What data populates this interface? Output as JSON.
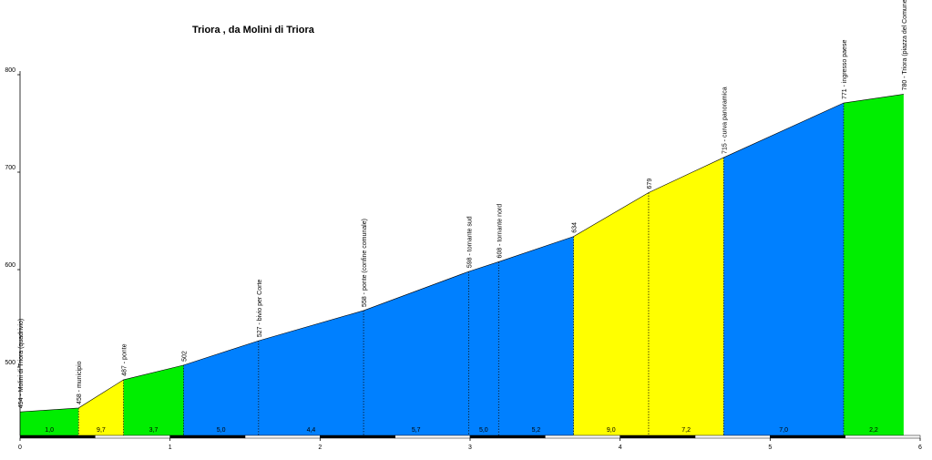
{
  "chart_data": {
    "type": "area",
    "title": "Triora , da Molini di Triora",
    "xlabel": "",
    "ylabel": "",
    "xlim": [
      0,
      6
    ],
    "ylim": [
      430,
      800
    ],
    "x_ticks": [
      0,
      1,
      2,
      3,
      4,
      5,
      6
    ],
    "y_ticks": [
      500,
      600,
      700,
      800
    ],
    "grid": false,
    "points": [
      {
        "x": 0.0,
        "y": 454,
        "label": "454 - Molini di Triora (quadrivio)"
      },
      {
        "x": 0.39,
        "y": 458,
        "label": "458 - municipio"
      },
      {
        "x": 0.69,
        "y": 487,
        "label": "487 - ponte"
      },
      {
        "x": 1.09,
        "y": 502,
        "label": "502"
      },
      {
        "x": 1.59,
        "y": 527,
        "label": "527 - bivio per Corte"
      },
      {
        "x": 2.29,
        "y": 558,
        "label": "558 - ponte (confine comunale)"
      },
      {
        "x": 2.99,
        "y": 598,
        "label": "598 - tornante sud"
      },
      {
        "x": 3.19,
        "y": 608,
        "label": "608 - tornante nord"
      },
      {
        "x": 3.69,
        "y": 634,
        "label": "634"
      },
      {
        "x": 4.19,
        "y": 679,
        "label": "679"
      },
      {
        "x": 4.69,
        "y": 715,
        "label": "715 - curva panoramica"
      },
      {
        "x": 5.49,
        "y": 771,
        "label": "771 - ingresso paese"
      },
      {
        "x": 5.89,
        "y": 780,
        "label": "780 - Triora (piazza del Comune)"
      }
    ],
    "segments": [
      {
        "from": 0.0,
        "to": 0.39,
        "gradient": "1,0",
        "color": "#00ee00"
      },
      {
        "from": 0.39,
        "to": 0.69,
        "gradient": "9,7",
        "color": "#ffff00"
      },
      {
        "from": 0.69,
        "to": 1.09,
        "gradient": "3,7",
        "color": "#00ee00"
      },
      {
        "from": 1.09,
        "to": 1.59,
        "gradient": "5,0",
        "color": "#0080ff"
      },
      {
        "from": 1.59,
        "to": 2.29,
        "gradient": "4,4",
        "color": "#0080ff"
      },
      {
        "from": 2.29,
        "to": 2.99,
        "gradient": "5,7",
        "color": "#0080ff"
      },
      {
        "from": 2.99,
        "to": 3.19,
        "gradient": "5,0",
        "color": "#0080ff"
      },
      {
        "from": 3.19,
        "to": 3.69,
        "gradient": "5,2",
        "color": "#0080ff"
      },
      {
        "from": 3.69,
        "to": 4.19,
        "gradient": "9,0",
        "color": "#ffff00"
      },
      {
        "from": 4.19,
        "to": 4.69,
        "gradient": "7,2",
        "color": "#ffff00"
      },
      {
        "from": 4.69,
        "to": 5.49,
        "gradient": "7,0",
        "color": "#0080ff"
      },
      {
        "from": 5.49,
        "to": 5.89,
        "gradient": "2,2",
        "color": "#00ee00"
      }
    ]
  }
}
